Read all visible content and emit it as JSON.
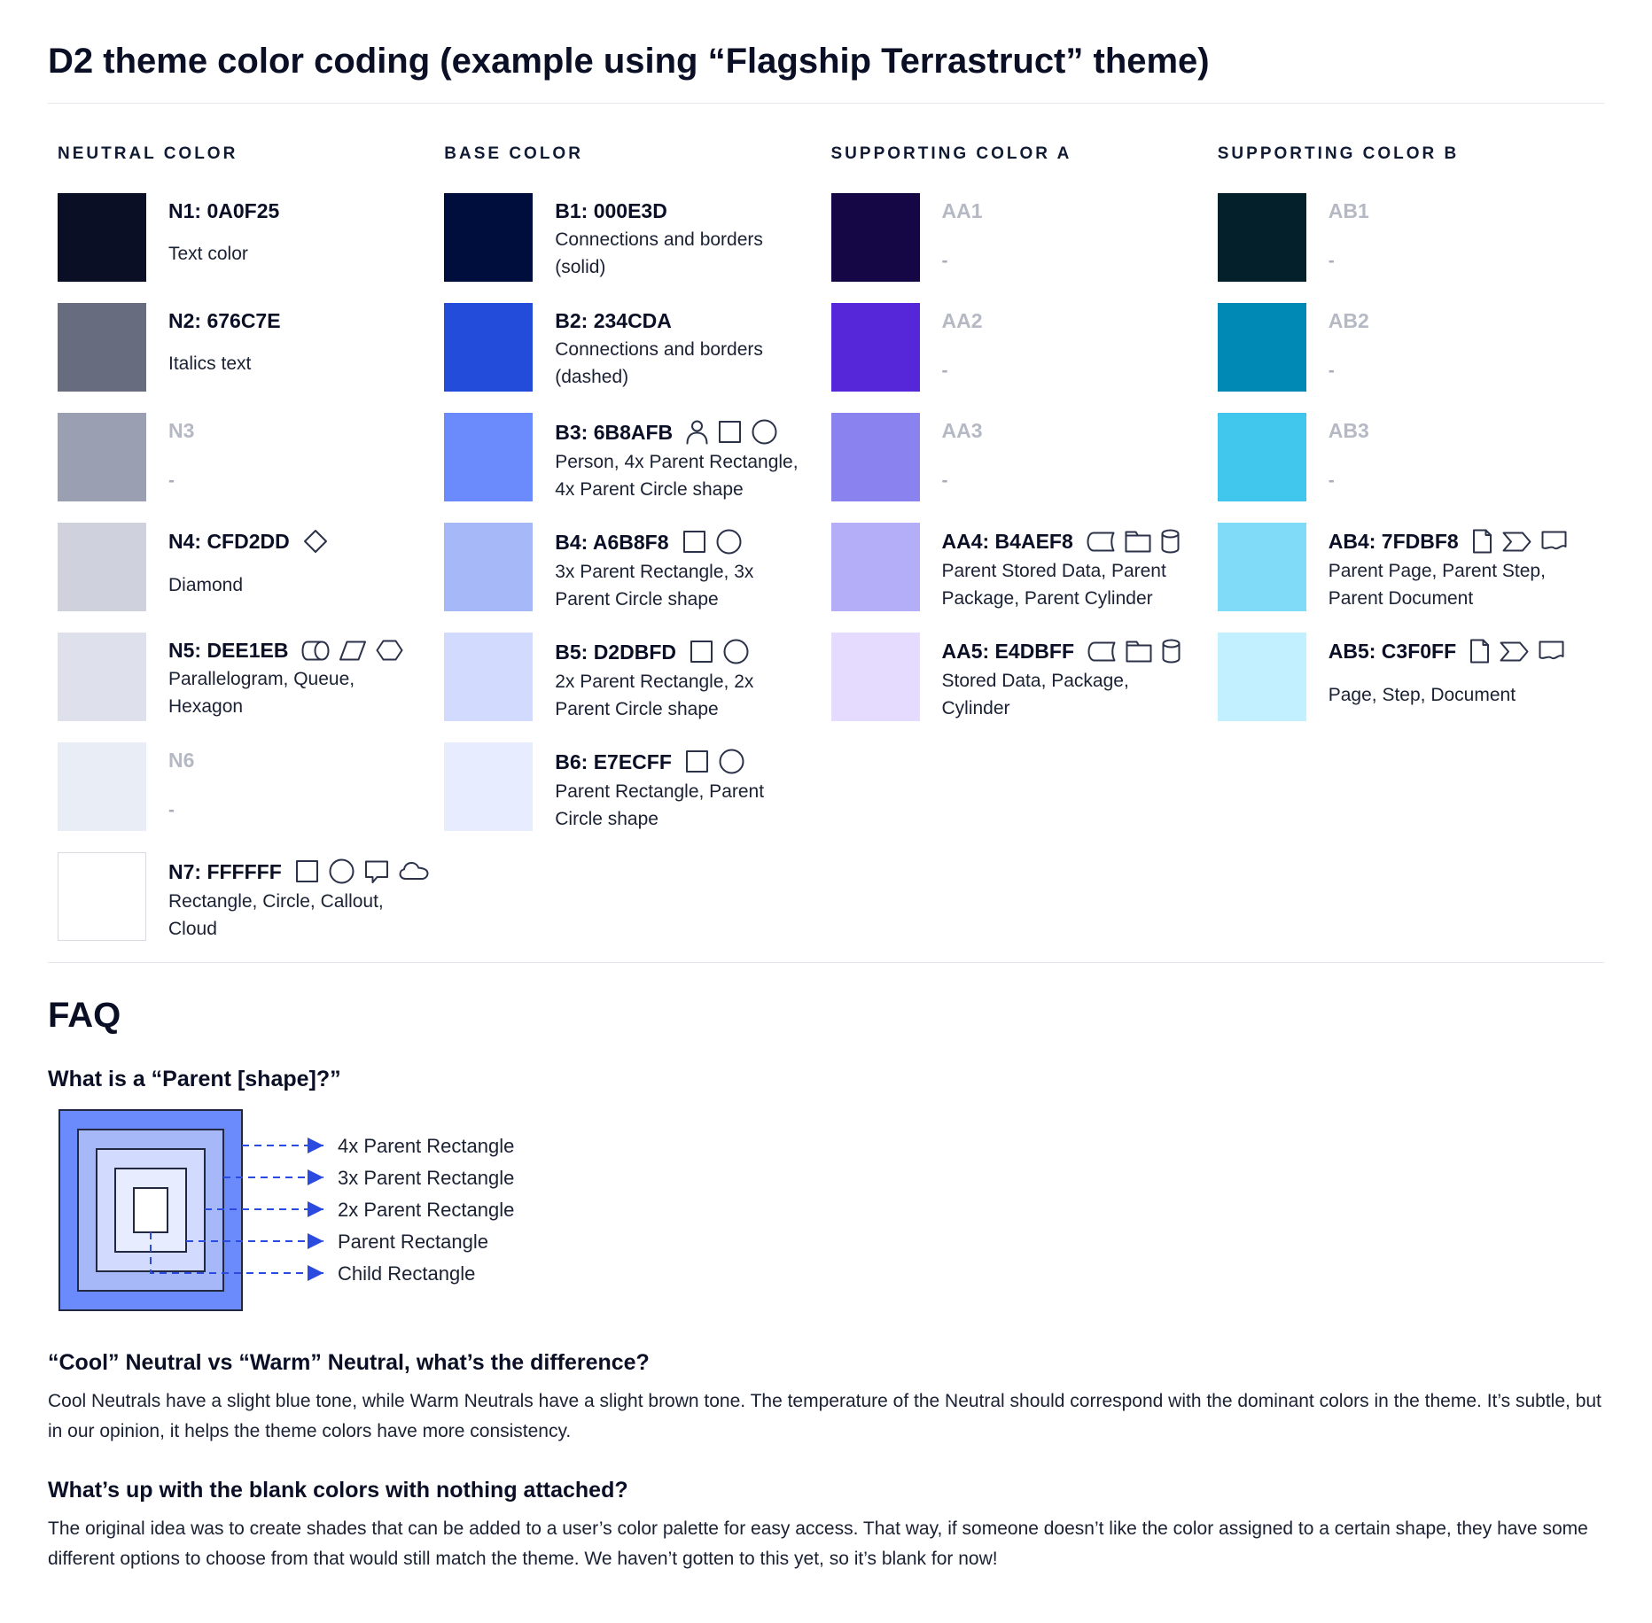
{
  "page": {
    "title": "D2 theme color coding (example using “Flagship Terrastruct” theme)"
  },
  "columns": [
    {
      "header": "NEUTRAL COLOR",
      "rows": [
        {
          "label": "N1: 0A0F25",
          "swatch": "#0A0F25",
          "desc": "Text color",
          "icons": []
        },
        {
          "label": "N2: 676C7E",
          "swatch": "#676C7E",
          "desc": "Italics text",
          "icons": []
        },
        {
          "label": "N3",
          "swatch": "#9AA0B1",
          "desc": "-",
          "muted": true
        },
        {
          "label": "N4: CFD2DD",
          "swatch": "#CFD2DD",
          "desc": "Diamond",
          "icons": [
            "diamond"
          ]
        },
        {
          "label": "N5: DEE1EB",
          "swatch": "#DEE1EB",
          "desc": "Parallelogram, Queue, Hexagon",
          "icons": [
            "queue",
            "parallelogram",
            "hexagon"
          ]
        },
        {
          "label": "N6",
          "swatch": "#E9EDF6",
          "desc": "-",
          "muted": true
        },
        {
          "label": "N7: FFFFFF",
          "swatch": "#FFFFFF",
          "desc": "Rectangle, Circle, Callout, Cloud",
          "icons": [
            "rectangle",
            "circle",
            "callout",
            "cloud"
          ],
          "border": true
        }
      ]
    },
    {
      "header": "BASE COLOR",
      "rows": [
        {
          "label": "B1: 000E3D",
          "swatch": "#000E3D",
          "desc": "Connections and borders (solid)",
          "icons": []
        },
        {
          "label": "B2: 234CDA",
          "swatch": "#234CDA",
          "desc": "Connections and borders (dashed)",
          "icons": []
        },
        {
          "label": "B3: 6B8AFB",
          "swatch": "#6B8AFB",
          "desc": "Person, 4x Parent Rectangle, 4x Parent Circle shape",
          "icons": [
            "person",
            "rectangle",
            "circle"
          ]
        },
        {
          "label": "B4: A6B8F8",
          "swatch": "#A6B8F8",
          "desc": "3x Parent Rectangle, 3x Parent Circle shape",
          "icons": [
            "rectangle",
            "circle"
          ]
        },
        {
          "label": "B5: D2DBFD",
          "swatch": "#D2DBFD",
          "desc": "2x Parent Rectangle, 2x Parent Circle shape",
          "icons": [
            "rectangle",
            "circle"
          ]
        },
        {
          "label": "B6: E7ECFF",
          "swatch": "#E7ECFF",
          "desc": "Parent Rectangle, Parent Circle shape",
          "icons": [
            "rectangle",
            "circle"
          ]
        }
      ]
    },
    {
      "header": "SUPPORTING COLOR A",
      "rows": [
        {
          "label": "AA1",
          "swatch": "#150646",
          "desc": "-",
          "muted": true
        },
        {
          "label": "AA2",
          "swatch": "#5527D9",
          "desc": "-",
          "muted": true
        },
        {
          "label": "AA3",
          "swatch": "#8A82EF",
          "desc": "-",
          "muted": true
        },
        {
          "label": "AA4: B4AEF8",
          "swatch": "#B4AEF8",
          "desc": "Parent Stored Data, Parent Package,  Parent Cylinder",
          "icons": [
            "stored-data",
            "package",
            "cylinder"
          ]
        },
        {
          "label": "AA5: E4DBFF",
          "swatch": "#E4DBFF",
          "desc": "Stored Data, Package, Cylinder",
          "icons": [
            "stored-data",
            "package",
            "cylinder"
          ]
        }
      ]
    },
    {
      "header": "SUPPORTING COLOR B",
      "rows": [
        {
          "label": "AB1",
          "swatch": "#04212B",
          "desc": "-",
          "muted": true
        },
        {
          "label": "AB2",
          "swatch": "#0089B4",
          "desc": "-",
          "muted": true
        },
        {
          "label": "AB3",
          "swatch": "#41C6EE",
          "desc": "-",
          "muted": true
        },
        {
          "label": "AB4: 7FDBF8",
          "swatch": "#7FDBF8",
          "desc": "Parent Page, Parent Step, Parent Document",
          "icons": [
            "page",
            "step",
            "document"
          ]
        },
        {
          "label": "AB5: C3F0FF",
          "swatch": "#C3F0FF",
          "desc": "Page, Step, Document",
          "icons": [
            "page",
            "step",
            "document"
          ]
        }
      ]
    }
  ],
  "faq": {
    "heading": "FAQ",
    "q1": "What is a “Parent [shape]?”",
    "diagram": {
      "labels": [
        "4x Parent Rectangle",
        "3x Parent Rectangle",
        "2x Parent Rectangle",
        "Parent Rectangle",
        "Child Rectangle"
      ],
      "fills": [
        "#6B8AFB",
        "#A6B8F8",
        "#D2DBFD",
        "#E7ECFF",
        "#FFFFFF"
      ],
      "line_color": "#2B4ADF"
    },
    "q2": "“Cool” Neutral vs “Warm” Neutral, what’s the difference?",
    "a2": "Cool Neutrals have a slight blue tone, while Warm Neutrals have a slight brown tone. The temperature of the Neutral should correspond with the dominant colors in the theme. It’s subtle, but in our opinion, it helps the theme colors have more consistency.",
    "q3": "What’s up with the blank colors with nothing attached?",
    "a3": "The original idea was to create shades that can be added to a user’s color palette for easy access. That way, if someone doesn’t like the color assigned to a certain shape, they have some different options to choose from that would still match the theme. We haven’t gotten to this yet, so it’s blank for now!"
  }
}
